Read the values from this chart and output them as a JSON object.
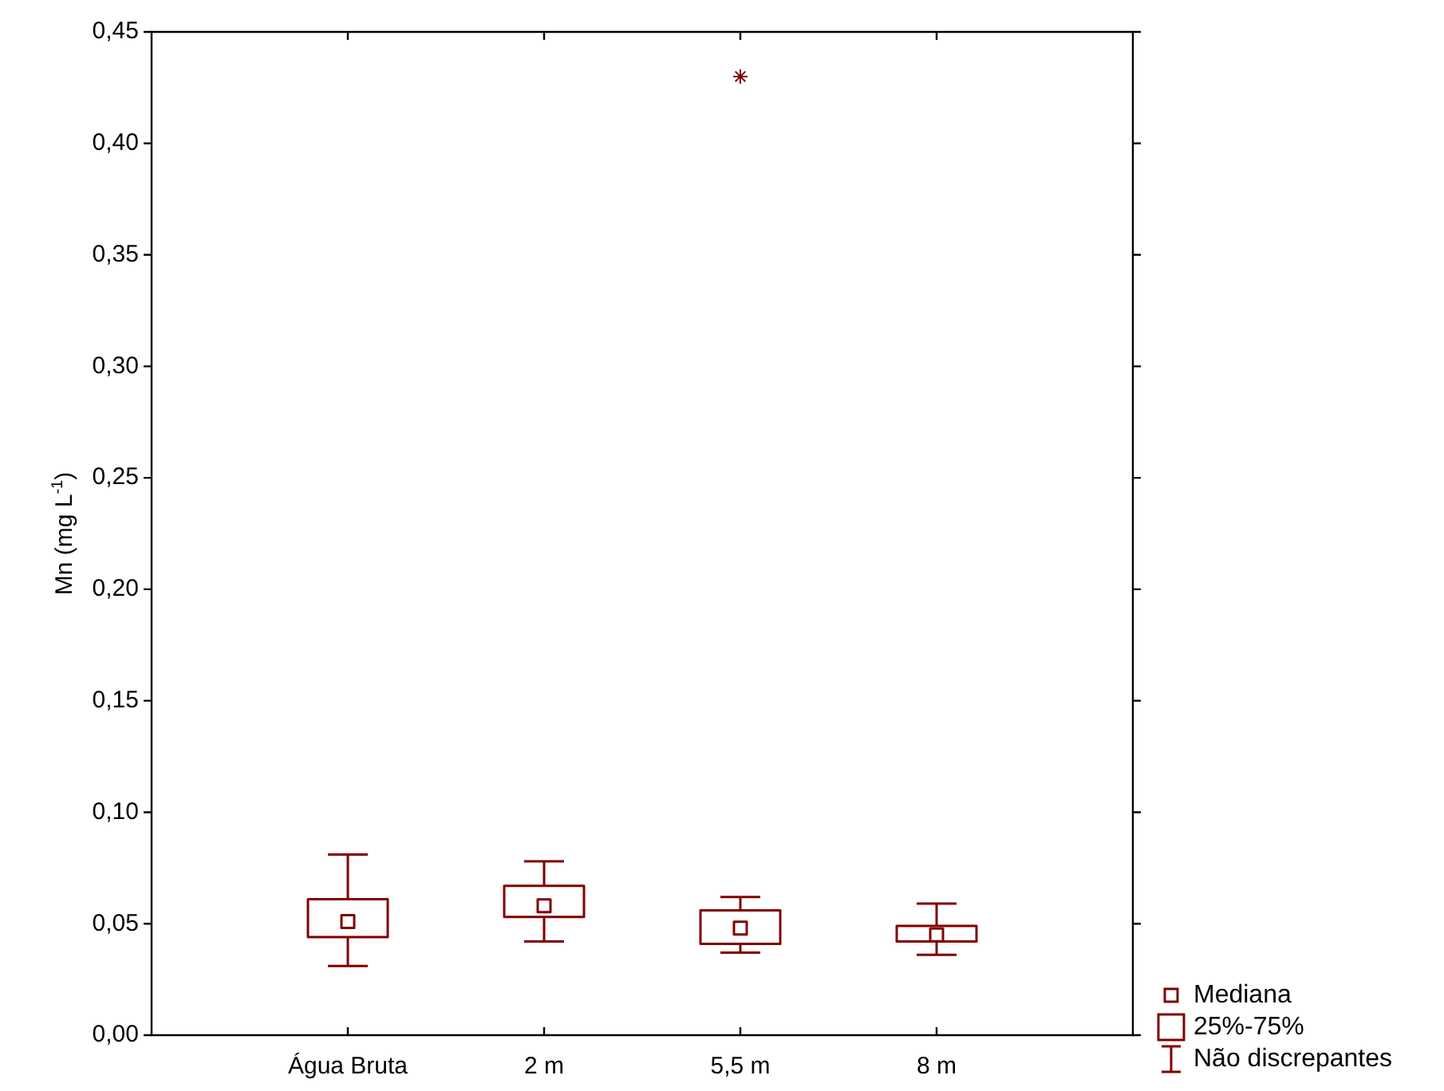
{
  "chart_data": {
    "type": "box",
    "ylabel": "Mn (mg L$^{-1}$)",
    "categories": [
      "Água Bruta",
      "2 m",
      "5,5 m",
      "8 m"
    ],
    "series": [
      {
        "color": "#800000",
        "boxes": [
          {
            "low": 0.031,
            "q1": 0.044,
            "median": 0.051,
            "q3": 0.061,
            "high": 0.081
          },
          {
            "low": 0.042,
            "q1": 0.053,
            "median": 0.058,
            "q3": 0.067,
            "high": 0.078
          },
          {
            "low": 0.037,
            "q1": 0.041,
            "median": 0.048,
            "q3": 0.056,
            "high": 0.062,
            "outliers": [
              0.43
            ]
          },
          {
            "low": 0.036,
            "q1": 0.042,
            "median": 0.045,
            "q3": 0.049,
            "high": 0.059
          }
        ]
      }
    ],
    "ylim": [
      0,
      0.45
    ],
    "yticks": [
      {
        "value": 0,
        "label": "0,00"
      },
      {
        "value": 0.05,
        "label": "0,05"
      },
      {
        "value": 0.1,
        "label": "0,10"
      },
      {
        "value": 0.15,
        "label": "0,15"
      },
      {
        "value": 0.2,
        "label": "0,20"
      },
      {
        "value": 0.25,
        "label": "0,25"
      },
      {
        "value": 0.3,
        "label": "0,30"
      },
      {
        "value": 0.35,
        "label": "0,35"
      },
      {
        "value": 0.4,
        "label": "0,40"
      },
      {
        "value": 0.45,
        "label": "0,45"
      }
    ],
    "grid": false,
    "annotations": [
      "Mediana",
      "25%-75%",
      "Não discrepantes"
    ]
  }
}
